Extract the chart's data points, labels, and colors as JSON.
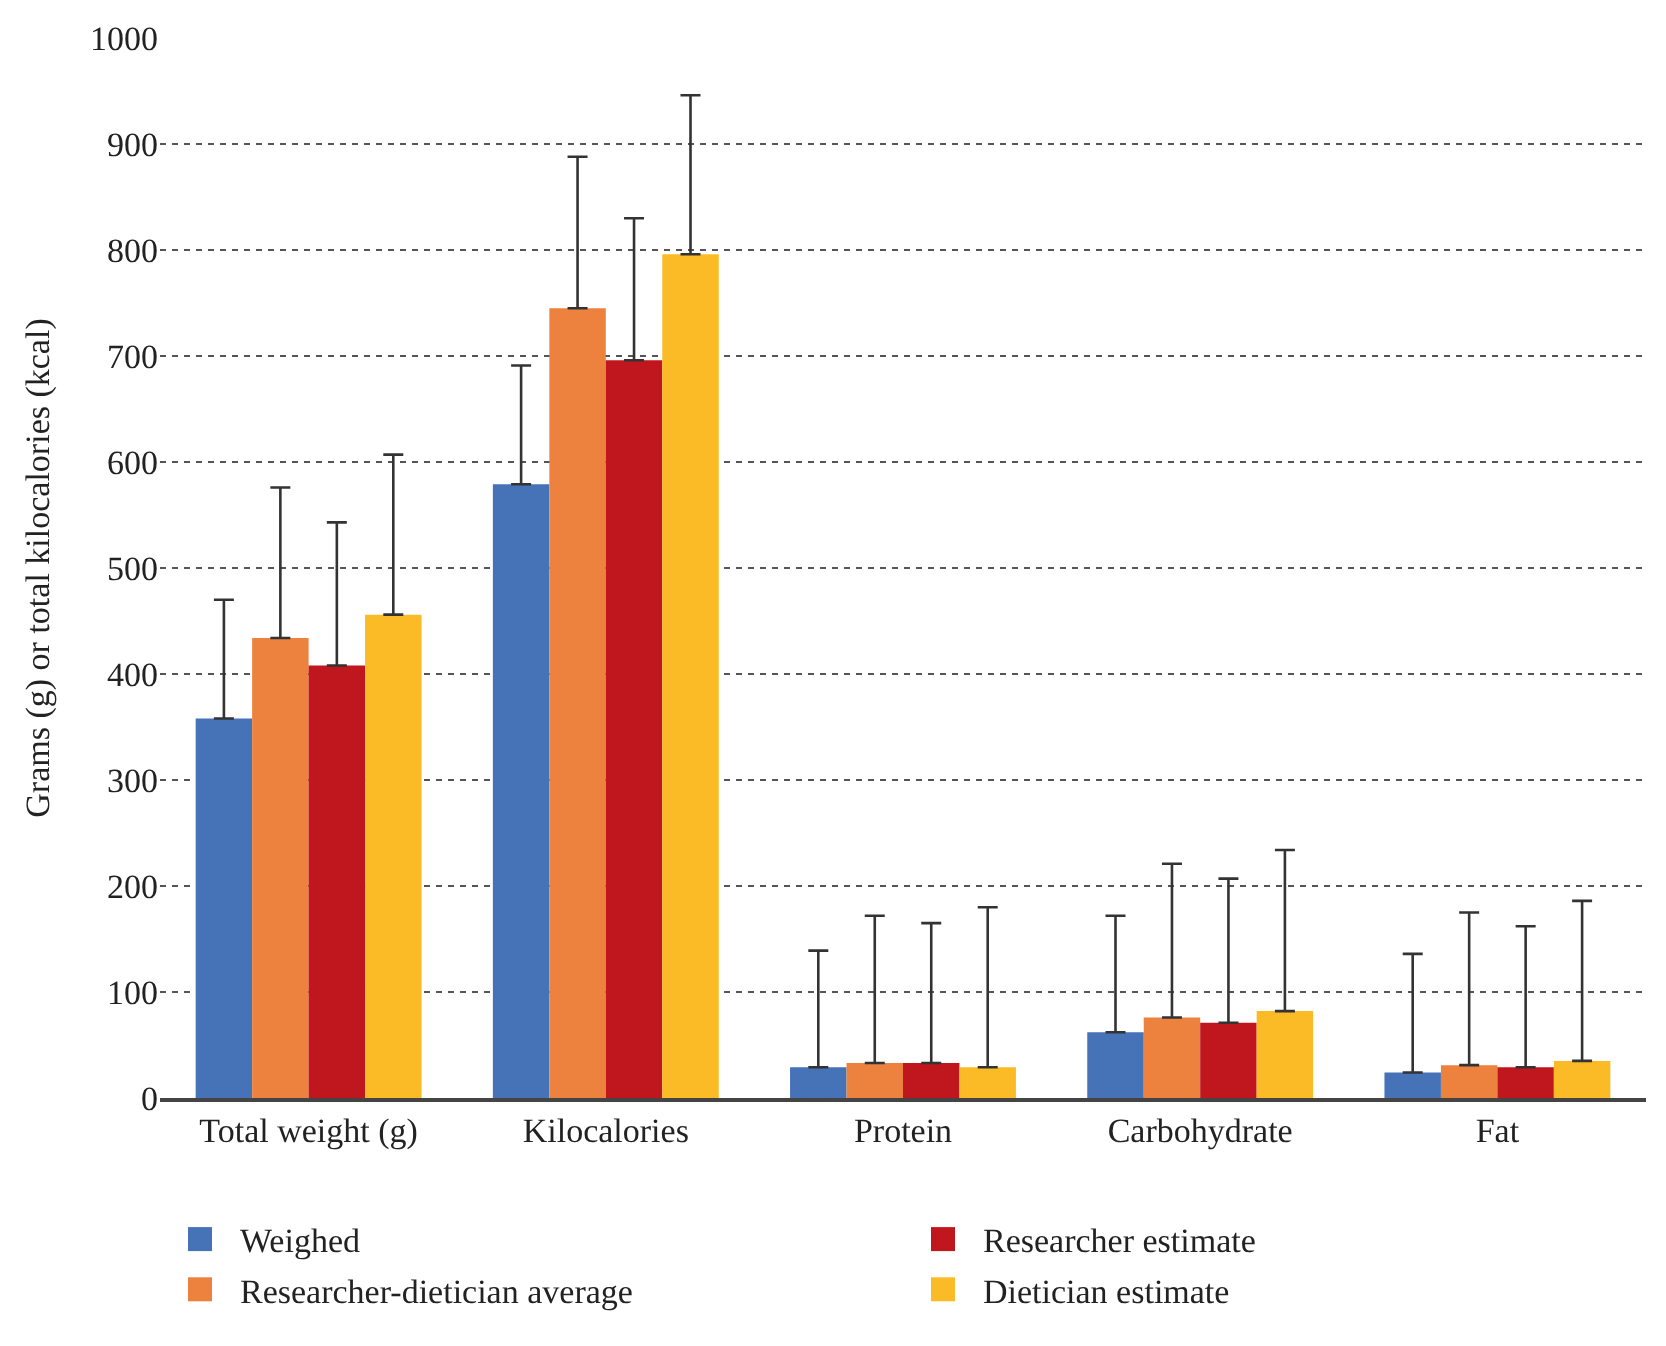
{
  "chart_data": {
    "type": "bar",
    "ylabel": "Grams (g) or total kilocalories (kcal)",
    "categories": [
      "Total weight (g)",
      "Kilocalories",
      "Protein",
      "Carbohydrate",
      "Fat"
    ],
    "series": [
      {
        "name": "Weighed",
        "color": "#4672b8",
        "values": [
          358,
          579,
          29,
          62,
          24
        ],
        "errors": [
          [
            358,
            470
          ],
          [
            579,
            691
          ],
          [
            29,
            139
          ],
          [
            62,
            172
          ],
          [
            24,
            136
          ]
        ]
      },
      {
        "name": "Researcher-dietician average",
        "color": "#ec823e",
        "values": [
          434,
          745,
          33,
          76,
          31
        ],
        "errors": [
          [
            434,
            576
          ],
          [
            745,
            888
          ],
          [
            33,
            172
          ],
          [
            76,
            221
          ],
          [
            31,
            175
          ]
        ]
      },
      {
        "name": "Researcher estimate",
        "color": "#c0161e",
        "values": [
          408,
          696,
          33,
          71,
          29
        ],
        "errors": [
          [
            408,
            543
          ],
          [
            696,
            830
          ],
          [
            33,
            165
          ],
          [
            71,
            207
          ],
          [
            29,
            162
          ]
        ]
      },
      {
        "name": "Dietician estimate",
        "color": "#fbbb26",
        "values": [
          456,
          796,
          29,
          82,
          35
        ],
        "errors": [
          [
            456,
            607
          ],
          [
            796,
            946
          ],
          [
            29,
            180
          ],
          [
            82,
            234
          ],
          [
            35,
            186
          ]
        ]
      }
    ],
    "ylim": [
      0,
      1000
    ],
    "yticks": [
      0,
      100,
      200,
      300,
      400,
      500,
      600,
      700,
      800,
      900,
      1000
    ],
    "grid": "y",
    "legend": "bottom"
  }
}
